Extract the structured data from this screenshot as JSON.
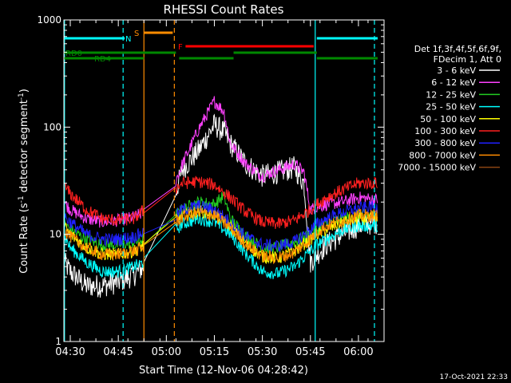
{
  "chart_data": {
    "type": "line",
    "title": "RHESSI Count Rates",
    "xlabel": "Start Time (12-Nov-06 04:28:42)",
    "ylabel_main": "Count Rate (s",
    "ylabel_sup1": "-1",
    "ylabel_mid": " detector segment",
    "ylabel_sup2": "-1",
    "ylabel_end": ")",
    "y_scale": "log",
    "ylim": [
      1,
      1000
    ],
    "xlim_minutes": [
      268,
      368
    ],
    "x_ticks": [
      {
        "label": "04:30",
        "min": 270
      },
      {
        "label": "04:45",
        "min": 285
      },
      {
        "label": "05:00",
        "min": 300
      },
      {
        "label": "05:15",
        "min": 315
      },
      {
        "label": "05:30",
        "min": 330
      },
      {
        "label": "05:45",
        "min": 345
      },
      {
        "label": "06:00",
        "min": 360
      }
    ],
    "y_ticks": [
      {
        "label": "1",
        "value": 1
      },
      {
        "label": "10",
        "value": 10
      },
      {
        "label": "100",
        "value": 100
      },
      {
        "label": "1000",
        "value": 1000
      }
    ],
    "legend_header": [
      "Det 1f,3f,4f,5f,6f,9f,",
      "FDecim 1, Att 0"
    ],
    "legend_placement": "right",
    "series": [
      {
        "name": "3 - 6 keV",
        "color": "#ffffff",
        "x": [
          268,
          270,
          275,
          280,
          285,
          290,
          293,
          303,
          305,
          310,
          315,
          318,
          320,
          325,
          330,
          335,
          340,
          343,
          345,
          347,
          350,
          355,
          360,
          366
        ],
        "y": [
          5.5,
          4.5,
          3.3,
          3.3,
          3.6,
          4.2,
          5.0,
          25,
          40,
          60,
          105,
          90,
          70,
          45,
          35,
          38,
          42,
          30,
          5.5,
          6.5,
          8,
          10,
          12,
          13
        ]
      },
      {
        "name": "6 - 12 keV",
        "color": "#ff40ff",
        "x": [
          268,
          270,
          275,
          280,
          285,
          290,
          293,
          303,
          305,
          310,
          315,
          318,
          320,
          325,
          330,
          335,
          340,
          343,
          345,
          347,
          350,
          355,
          360,
          366
        ],
        "y": [
          20,
          17,
          14,
          13,
          13.5,
          14.5,
          16,
          32,
          45,
          95,
          175,
          140,
          70,
          45,
          35,
          40,
          45,
          38,
          17,
          18,
          19,
          20,
          22,
          21
        ]
      },
      {
        "name": "12 - 25 keV",
        "color": "#22cc22",
        "x": [
          268,
          270,
          275,
          280,
          285,
          290,
          293,
          303,
          305,
          310,
          315,
          318,
          320,
          325,
          330,
          335,
          340,
          345,
          347,
          350,
          355,
          360,
          366
        ],
        "y": [
          13,
          11,
          9,
          8,
          8,
          8.5,
          9,
          15,
          17,
          20,
          19,
          23,
          14,
          9.5,
          7.5,
          7.5,
          8.5,
          10,
          11,
          12.5,
          14,
          15,
          15
        ]
      },
      {
        "name": "25 - 50 keV",
        "color": "#00ffff",
        "x": [
          268,
          270,
          275,
          280,
          285,
          290,
          293,
          303,
          305,
          310,
          315,
          320,
          325,
          330,
          335,
          340,
          345,
          347,
          350,
          355,
          360,
          366
        ],
        "y": [
          10,
          7.5,
          5.5,
          4.5,
          4.5,
          5,
          5.5,
          11,
          12.5,
          14,
          13,
          10,
          6.5,
          4.5,
          4.3,
          5,
          7,
          8,
          9,
          11,
          12,
          12
        ]
      },
      {
        "name": "50 - 100 keV",
        "color": "#ffff00",
        "x": [
          268,
          270,
          275,
          280,
          285,
          290,
          293,
          303,
          305,
          310,
          315,
          320,
          325,
          330,
          335,
          340,
          345,
          347,
          350,
          355,
          360,
          366
        ],
        "y": [
          12,
          10,
          7.5,
          6.5,
          6.5,
          7,
          8,
          13.5,
          15,
          16.5,
          15.5,
          12,
          8,
          6.2,
          6,
          7,
          9,
          10,
          11,
          13,
          14,
          14
        ]
      },
      {
        "name": "100 - 300 keV",
        "color": "#ff2020",
        "x": [
          268,
          270,
          275,
          280,
          285,
          290,
          293,
          303,
          305,
          310,
          315,
          320,
          325,
          330,
          335,
          340,
          345,
          347,
          350,
          355,
          360,
          366
        ],
        "y": [
          28,
          24,
          17,
          14,
          13.5,
          14,
          17,
          27,
          30,
          31,
          29,
          22,
          16,
          13,
          12.5,
          13.5,
          17,
          19,
          22,
          26,
          30,
          30
        ]
      },
      {
        "name": "300 - 800 keV",
        "color": "#2020ff",
        "x": [
          268,
          270,
          275,
          280,
          285,
          290,
          293,
          303,
          305,
          310,
          315,
          320,
          325,
          330,
          335,
          340,
          345,
          347,
          350,
          355,
          360,
          366
        ],
        "y": [
          15,
          13,
          10,
          9,
          9,
          9.5,
          10.5,
          15,
          17,
          18.5,
          17,
          13,
          9.5,
          8,
          7.8,
          8.5,
          11,
          12.5,
          14,
          16,
          17.5,
          18
        ]
      },
      {
        "name": "800 - 7000 keV",
        "color": "#ff8c00",
        "x": [
          268,
          270,
          275,
          280,
          285,
          290,
          293,
          303,
          305,
          310,
          315,
          320,
          325,
          330,
          335,
          340,
          345,
          347,
          350,
          355,
          360,
          366
        ],
        "y": [
          11,
          9.5,
          7.5,
          6.5,
          6.5,
          7,
          7.5,
          13,
          14.5,
          16,
          15,
          11.5,
          8,
          6.3,
          6,
          6.8,
          9,
          10.5,
          12,
          13.5,
          15,
          15
        ]
      },
      {
        "name": "7000 - 15000 keV",
        "color": "#8b4513",
        "x": [],
        "y": []
      }
    ],
    "annotations": [
      {
        "label": "RD0",
        "color": "#008800",
        "segments": [
          [
            268,
            303
          ],
          [
            304,
            321
          ],
          [
            321,
            347
          ],
          [
            347,
            366
          ]
        ]
      },
      {
        "label": "RD4",
        "color": "#008800",
        "segments": [
          [
            268,
            293
          ]
        ]
      },
      {
        "label": "N",
        "color": "#00ffff",
        "segments": [
          [
            268,
            287
          ],
          [
            347,
            366
          ]
        ]
      },
      {
        "label": "S",
        "color": "#ff8c00",
        "segments": [
          [
            293,
            302
          ]
        ]
      },
      {
        "label": "F",
        "color": "#ff0000",
        "segments": [
          [
            306,
            346
          ]
        ]
      }
    ],
    "vlines": [
      {
        "min": 268.2,
        "color": "#00ffff",
        "dashed": false
      },
      {
        "min": 286.5,
        "color": "#00ffff",
        "dashed": true
      },
      {
        "min": 293.0,
        "color": "#ff8c00",
        "dashed": false
      },
      {
        "min": 302.5,
        "color": "#ff8c00",
        "dashed": true
      },
      {
        "min": 346.5,
        "color": "#00ffff",
        "dashed": false
      },
      {
        "min": 365.0,
        "color": "#00ffff",
        "dashed": true
      }
    ],
    "grid": false
  },
  "footer_timestamp": "17-Oct-2021 22:33"
}
